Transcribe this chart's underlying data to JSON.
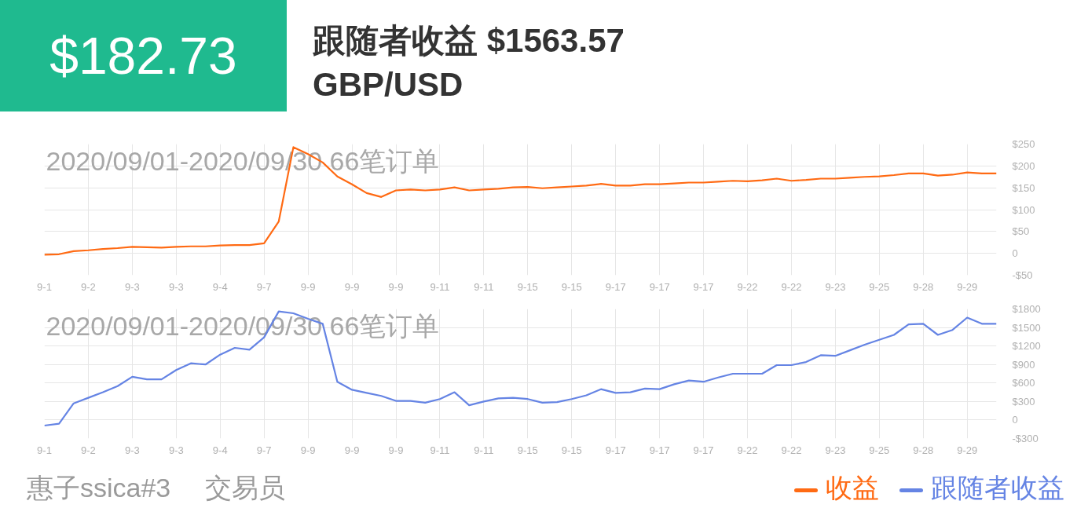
{
  "chart_data": [
    {
      "type": "line",
      "title": "跟随者收益 $1563.57",
      "subtitle": "GBP/USD",
      "annotations": [
        "$182.73",
        "2020/09/01-2020/09/30 66笔订单"
      ],
      "categories": [
        "9-1",
        null,
        null,
        "9-2",
        null,
        null,
        "9-3",
        null,
        null,
        "9-3",
        null,
        null,
        "9-4",
        null,
        null,
        "9-7",
        null,
        null,
        "9-9",
        null,
        null,
        "9-9",
        null,
        null,
        "9-9",
        null,
        null,
        "9-11",
        null,
        null,
        "9-11",
        null,
        null,
        "9-15",
        null,
        null,
        "9-15",
        null,
        null,
        "9-17",
        null,
        null,
        "9-17",
        null,
        null,
        "9-17",
        null,
        null,
        "9-22",
        null,
        null,
        "9-22",
        null,
        null,
        "9-23",
        null,
        null,
        "9-25",
        null,
        null,
        "9-28",
        null,
        null,
        "9-29",
        null,
        null
      ],
      "series": [
        {
          "name": "收益",
          "color": "#ff6a13",
          "values": [
            -3,
            -2,
            5,
            7,
            10,
            12,
            15,
            14,
            13,
            15,
            16,
            16,
            18,
            19,
            19,
            23,
            73,
            243,
            227,
            208,
            176,
            158,
            138,
            129,
            144,
            146,
            144,
            146,
            151,
            144,
            146,
            148,
            151,
            152,
            149,
            151,
            153,
            155,
            159,
            155,
            155,
            158,
            158,
            160,
            162,
            162,
            164,
            166,
            165,
            167,
            171,
            166,
            168,
            171,
            171,
            173,
            175,
            176,
            179,
            183,
            183,
            178,
            180,
            185,
            183,
            183
          ]
        }
      ],
      "ylim": [
        -50,
        250
      ],
      "yticks": [
        {
          "value": -50,
          "label": "-$50"
        },
        0,
        {
          "value": 50,
          "label": "$50"
        },
        {
          "value": 100,
          "label": "$100"
        },
        {
          "value": 150,
          "label": "$150"
        },
        {
          "value": 200,
          "label": "$200"
        },
        {
          "value": 250,
          "label": "$250"
        }
      ],
      "grid": true,
      "legend": "bottom right"
    },
    {
      "type": "line",
      "annotations": [
        "2020/09/01-2020/09/30 66笔订单",
        "惠子ssica#3",
        "交易员"
      ],
      "categories": [
        "9-1",
        null,
        null,
        "9-2",
        null,
        null,
        "9-3",
        null,
        null,
        "9-3",
        null,
        null,
        "9-4",
        null,
        null,
        "9-7",
        null,
        null,
        "9-9",
        null,
        null,
        "9-9",
        null,
        null,
        "9-9",
        null,
        null,
        "9-11",
        null,
        null,
        "9-11",
        null,
        null,
        "9-15",
        null,
        null,
        "9-15",
        null,
        null,
        "9-17",
        null,
        null,
        "9-17",
        null,
        null,
        "9-17",
        null,
        null,
        "9-22",
        null,
        null,
        "9-22",
        null,
        null,
        "9-23",
        null,
        null,
        "9-25",
        null,
        null,
        "9-28",
        null,
        null,
        "9-29",
        null,
        null
      ],
      "series": [
        {
          "name": "跟随者收益",
          "color": "#6584e4",
          "values": [
            -90,
            -60,
            270,
            360,
            450,
            550,
            700,
            660,
            660,
            810,
            920,
            900,
            1060,
            1170,
            1140,
            1340,
            1760,
            1730,
            1640,
            1560,
            620,
            490,
            440,
            390,
            310,
            310,
            280,
            340,
            450,
            240,
            300,
            350,
            360,
            340,
            280,
            290,
            340,
            400,
            500,
            440,
            450,
            510,
            500,
            580,
            640,
            620,
            690,
            750,
            750,
            750,
            890,
            890,
            940,
            1050,
            1040,
            1130,
            1220,
            1300,
            1380,
            1550,
            1560,
            1380,
            1460,
            1660,
            1560,
            1560
          ]
        }
      ],
      "ylim": [
        -300,
        1800
      ],
      "yticks": [
        {
          "value": -300,
          "label": "-$300"
        },
        0,
        {
          "value": 300,
          "label": "$300"
        },
        {
          "value": 600,
          "label": "$600"
        },
        {
          "value": 900,
          "label": "$900"
        },
        {
          "value": 1200,
          "label": "$1200"
        },
        {
          "value": 1500,
          "label": "$1500"
        },
        {
          "value": 1800,
          "label": "$1800"
        }
      ],
      "grid": true,
      "legend": "bottom right"
    }
  ]
}
